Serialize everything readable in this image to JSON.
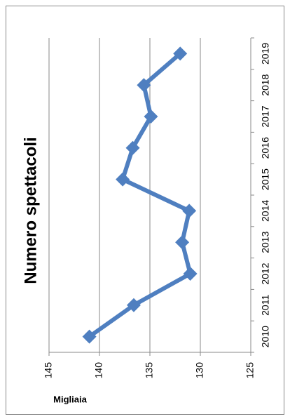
{
  "chart_data": {
    "type": "line",
    "title": "Numero spettacoli",
    "y_label": "Migliaia",
    "categories": [
      "2010",
      "2011",
      "2012",
      "2013",
      "2014",
      "2015",
      "2016",
      "2017",
      "2018",
      "2019"
    ],
    "series": [
      {
        "name": "Numero spettacoli",
        "color": "#4f7fc0",
        "values": [
          141.0,
          136.6,
          131.0,
          131.8,
          131.1,
          137.7,
          136.7,
          134.9,
          135.6,
          132.0
        ]
      }
    ],
    "ylim": [
      125,
      145
    ],
    "yticks": [
      125,
      130,
      135,
      140,
      145
    ],
    "grid": true
  }
}
